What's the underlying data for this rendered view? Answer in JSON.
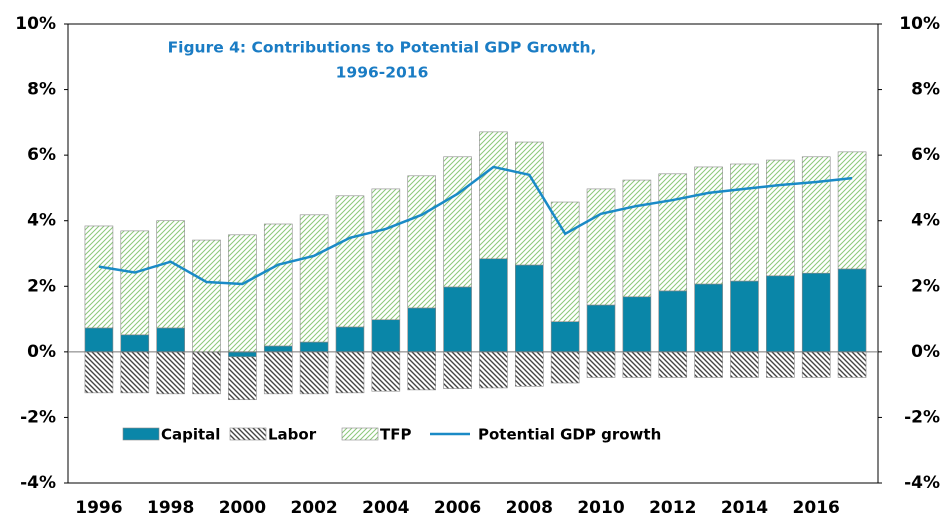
{
  "chart_data": {
    "type": "bar",
    "title": "Figure 4: Contributions to Potential GDP Growth,",
    "subtitle": "1996-2016",
    "categories": [
      "1996",
      null,
      "1998",
      null,
      "2000",
      null,
      "2002",
      null,
      "2004",
      null,
      "2006",
      null,
      "2008",
      null,
      "2010",
      null,
      "2012",
      null,
      "2014",
      null,
      "2016",
      null
    ],
    "series": [
      {
        "name": "Capital",
        "type": "bar",
        "fill": "solid",
        "color": "#0a86a8",
        "values": [
          0.73,
          0.52,
          0.73,
          0,
          -0.15,
          0.18,
          0.3,
          0.76,
          0.98,
          1.34,
          1.98,
          2.84,
          2.65,
          0.92,
          1.43,
          1.68,
          1.86,
          2.07,
          2.16,
          2.32,
          2.4,
          2.53
        ]
      },
      {
        "name": "Labor",
        "type": "bar",
        "fill": "hatch-back",
        "color": "#444444",
        "values": [
          -1.25,
          -1.25,
          -1.28,
          -1.28,
          -1.31,
          -1.28,
          -1.28,
          -1.25,
          -1.2,
          -1.16,
          -1.12,
          -1.1,
          -1.05,
          -0.95,
          -0.78,
          -0.78,
          -0.78,
          -0.78,
          -0.78,
          -0.78,
          -0.78,
          -0.78
        ]
      },
      {
        "name": "TFP",
        "type": "bar",
        "fill": "hatch-forward",
        "color": "#8cc97a",
        "values": [
          3.11,
          3.17,
          3.27,
          3.41,
          3.57,
          3.72,
          3.88,
          4.0,
          3.99,
          4.03,
          3.97,
          3.87,
          3.75,
          3.65,
          3.54,
          3.56,
          3.57,
          3.57,
          3.57,
          3.53,
          3.55,
          3.57
        ]
      },
      {
        "name": "Potential GDP growth",
        "type": "line",
        "color": "#1a8ac6",
        "values": [
          2.6,
          2.42,
          2.75,
          2.13,
          2.07,
          2.66,
          2.93,
          3.48,
          3.75,
          4.18,
          4.82,
          5.64,
          5.4,
          3.6,
          4.21,
          4.45,
          4.63,
          4.85,
          4.97,
          5.09,
          5.18,
          5.3
        ]
      }
    ],
    "ylim": [
      -4,
      10
    ],
    "yticks": [
      {
        "value": -4,
        "label": "-4%"
      },
      {
        "value": -2,
        "label": "-2%"
      },
      {
        "value": 0,
        "label": "0%"
      },
      {
        "value": 2,
        "label": "2%"
      },
      {
        "value": 4,
        "label": "4%"
      },
      {
        "value": 6,
        "label": "6%"
      },
      {
        "value": 8,
        "label": "8%"
      },
      {
        "value": 10,
        "label": "10%"
      }
    ],
    "y2lim": [
      -4,
      10
    ],
    "y2ticks": [
      {
        "value": -4,
        "label": "-4%"
      },
      {
        "value": -2,
        "label": "-2%"
      },
      {
        "value": 0,
        "label": "0%"
      },
      {
        "value": 2,
        "label": "2%"
      },
      {
        "value": 4,
        "label": "4%"
      },
      {
        "value": 6,
        "label": "6%"
      },
      {
        "value": 8,
        "label": "8%"
      },
      {
        "value": 10,
        "label": "10%"
      }
    ],
    "title_color": "#1a7cc4",
    "legend": "bottom-left"
  }
}
